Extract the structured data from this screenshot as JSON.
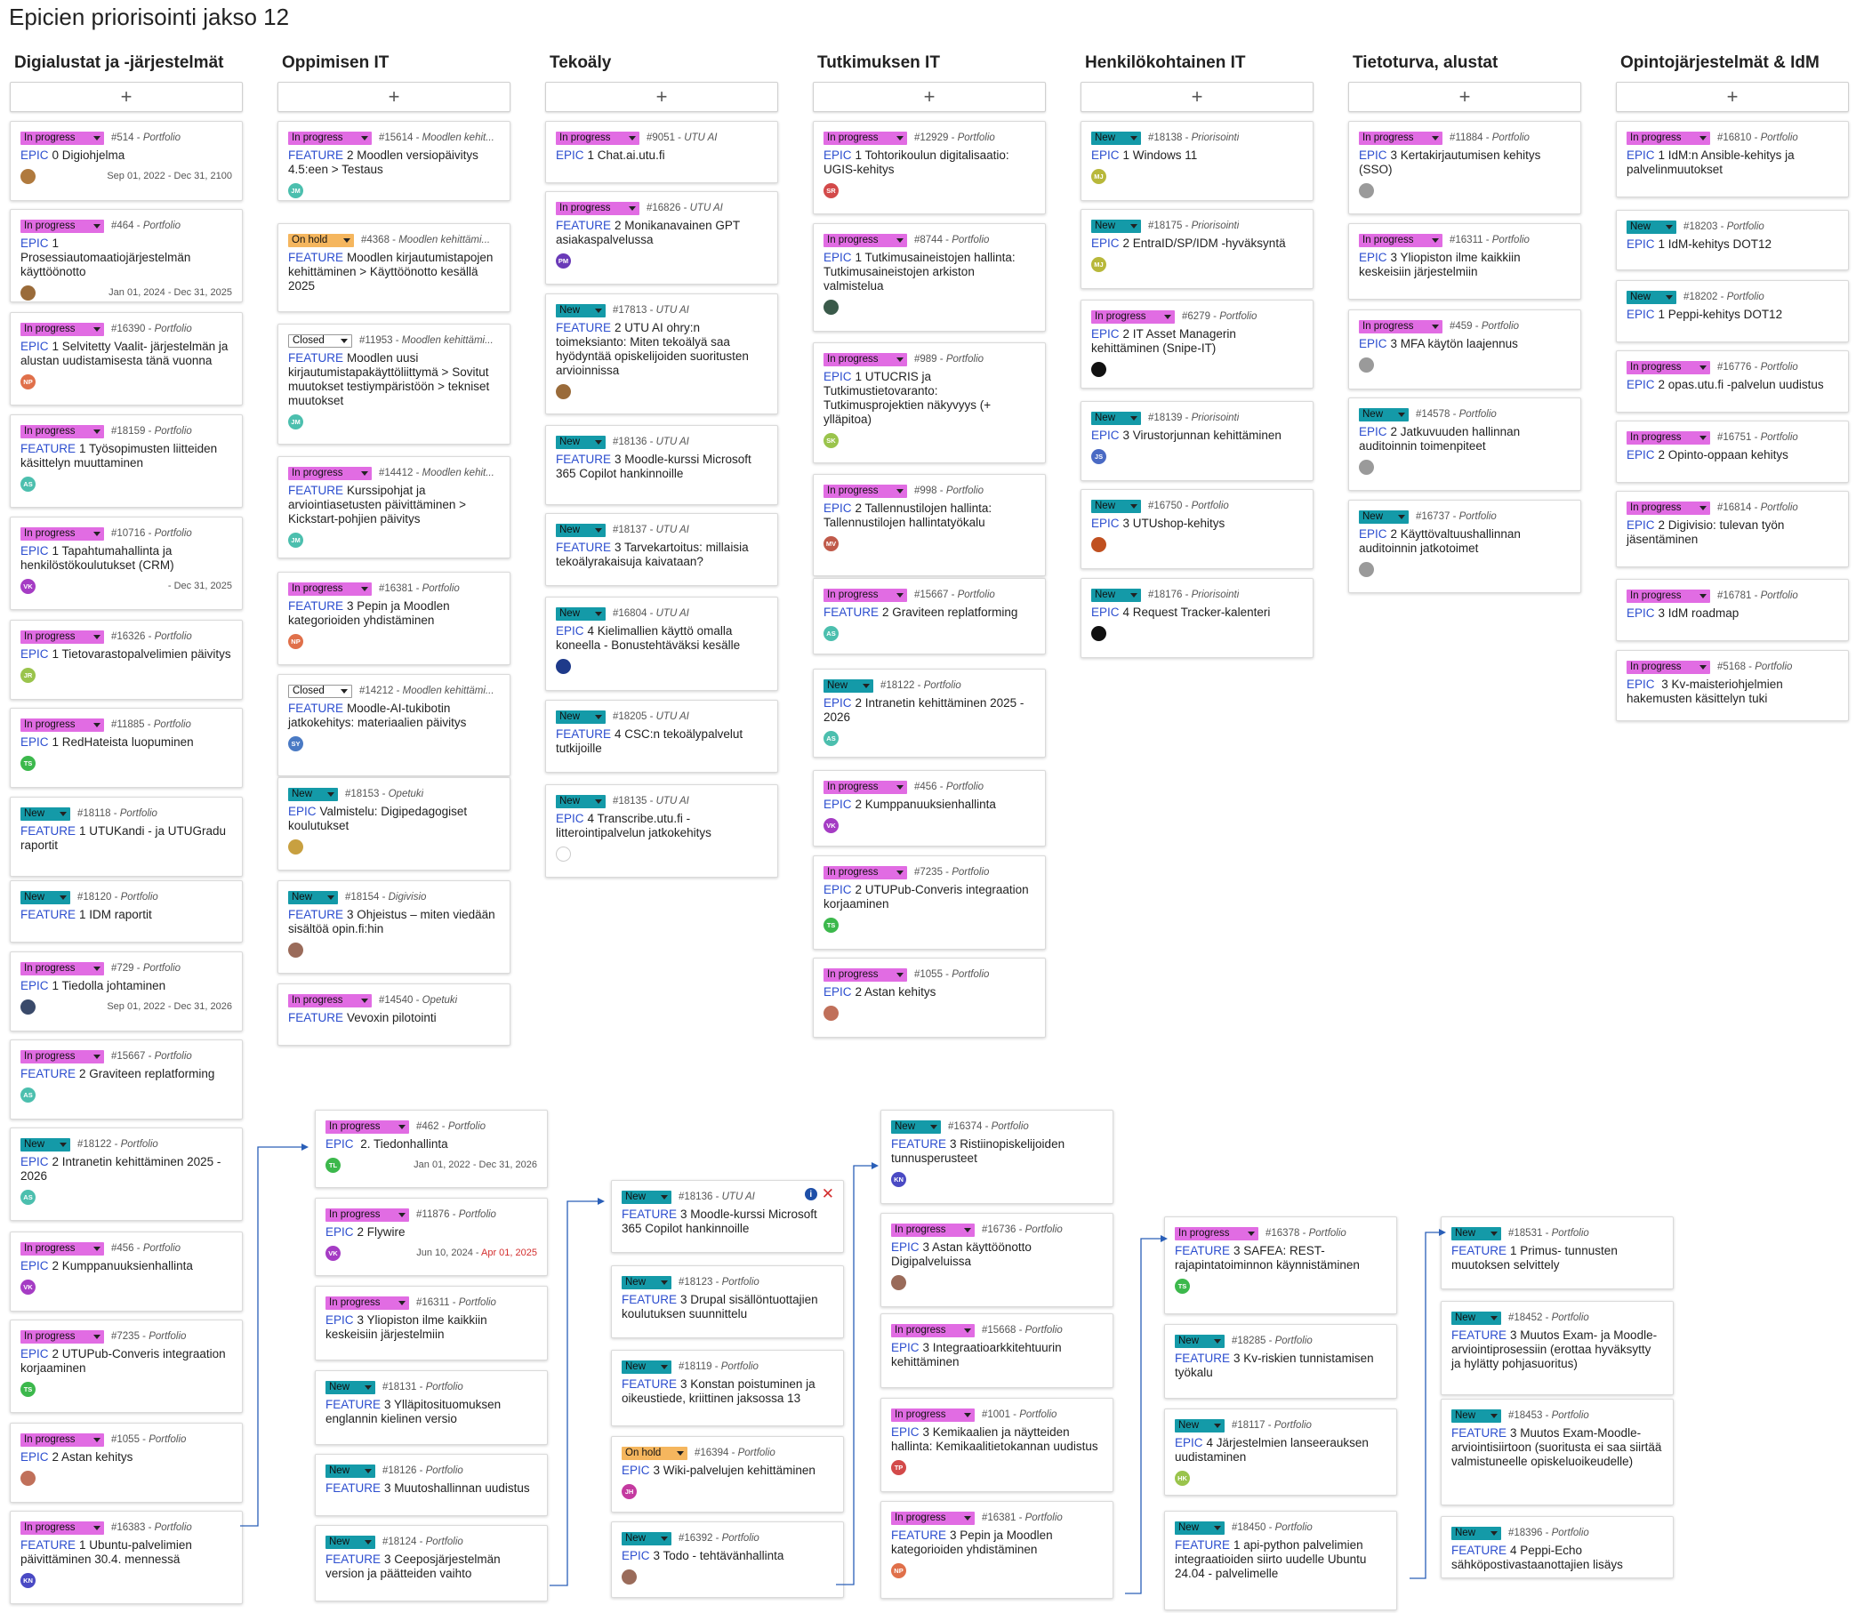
{
  "page": {
    "title": "Epicien priorisointi jakso 12"
  },
  "ui": {
    "add_label": "+"
  },
  "columns": [
    {
      "title": "Digialustat ja -järjestelmät"
    },
    {
      "title": "Oppimisen IT"
    },
    {
      "title": "Tekoäly"
    },
    {
      "title": "Tutkimuksen IT"
    },
    {
      "title": "Henkilökohtainen IT"
    },
    {
      "title": "Tietoturva, alustat"
    },
    {
      "title": "Opintojärjestelmät & IdM"
    }
  ],
  "status_colors": {
    "In progress": "#e16ce3",
    "New": "#149aa8",
    "On hold": "#f5b65e",
    "Closed": "#ffffff"
  },
  "cards": [
    {
      "status": "In progress",
      "num": "#514",
      "proj": "Portfolio",
      "kind": "EPIC",
      "text": "0 Digiohjelma",
      "avatar": "",
      "avcolor": "#b07a3e",
      "dates": "Sep 01, 2022 - Dec 31, 2100"
    },
    {
      "status": "In progress",
      "num": "#464",
      "proj": "Portfolio",
      "kind": "EPIC",
      "text": "1 Prosessiautomaatiojärjestelmän käyttöönotto",
      "avatar": "",
      "avcolor": "#9a6b3a",
      "dates": "Jan 01, 2024 - Dec 31, 2025"
    },
    {
      "status": "In progress",
      "num": "#16390",
      "proj": "Portfolio",
      "kind": "EPIC",
      "text": "1 Selvitetty Vaalit- järjestelmän ja alustan uudistamisesta tänä vuonna",
      "avatar": "NP",
      "avcolor": "#e0704a"
    },
    {
      "status": "In progress",
      "num": "#18159",
      "proj": "Portfolio",
      "kind": "FEATURE",
      "text": "1 Työsopimusten liitteiden käsittelyn muuttaminen",
      "avatar": "AS",
      "avcolor": "#4cbfae"
    },
    {
      "status": "In progress",
      "num": "#10716",
      "proj": "Portfolio",
      "kind": "EPIC",
      "text": "1 Tapahtumahallinta ja henkilöstökoulutukset (CRM)",
      "avatar": "VK",
      "avcolor": "#a53cc4",
      "dates": "- Dec 31, 2025"
    },
    {
      "status": "In progress",
      "num": "#16326",
      "proj": "Portfolio",
      "kind": "EPIC",
      "text": "1 Tietovarastopalvelimien päivitys",
      "avatar": "JR",
      "avcolor": "#9ac44c"
    },
    {
      "status": "In progress",
      "num": "#11885",
      "proj": "Portfolio",
      "kind": "EPIC",
      "text": "1 RedHateista luopuminen",
      "avatar": "TS",
      "avcolor": "#3cb84c"
    },
    {
      "status": "New",
      "num": "#18118",
      "proj": "Portfolio",
      "kind": "FEATURE",
      "text": "1 UTUKandi - ja UTUGradu raportit"
    },
    {
      "status": "New",
      "num": "#18120",
      "proj": "Portfolio",
      "kind": "FEATURE",
      "text": "1 IDM raportit"
    },
    {
      "status": "In progress",
      "num": "#729",
      "proj": "Portfolio",
      "kind": "EPIC",
      "text": "1 Tiedolla johtaminen",
      "avatar": "",
      "avcolor": "#3a4a6a",
      "dates": "Sep 01, 2022 - Dec 31, 2026"
    },
    {
      "status": "In progress",
      "num": "#15667",
      "proj": "Portfolio",
      "kind": "FEATURE",
      "text": "2 Graviteen replatforming",
      "avatar": "AS",
      "avcolor": "#4cbfae"
    },
    {
      "status": "New",
      "num": "#18122",
      "proj": "Portfolio",
      "kind": "EPIC",
      "text": "2 Intranetin kehittäminen 2025 - 2026",
      "avatar": "AS",
      "avcolor": "#4cbfae"
    },
    {
      "status": "In progress",
      "num": "#456",
      "proj": "Portfolio",
      "kind": "EPIC",
      "text": "2 Kumppanuuksienhallinta",
      "avatar": "VK",
      "avcolor": "#a53cc4"
    },
    {
      "status": "In progress",
      "num": "#7235",
      "proj": "Portfolio",
      "kind": "EPIC",
      "text": "2 UTUPub-Converis integraation korjaaminen",
      "avatar": "TS",
      "avcolor": "#3cb84c"
    },
    {
      "status": "In progress",
      "num": "#1055",
      "proj": "Portfolio",
      "kind": "EPIC",
      "text": "2 Astan kehitys",
      "avatar": "",
      "avcolor": "#c0705a"
    },
    {
      "status": "In progress",
      "num": "#16383",
      "proj": "Portfolio",
      "kind": "FEATURE",
      "text": "1 Ubuntu-palvelimien päivittäminen 30.4. mennessä",
      "avatar": "KN",
      "avcolor": "#4a4ac4"
    },
    {
      "status": "In progress",
      "num": "#15614",
      "proj": "Moodlen kehit...",
      "kind": "FEATURE",
      "text": "2 Moodlen versiopäivitys 4.5:een > Testaus",
      "avatar": "JM",
      "avcolor": "#4cbfae"
    },
    {
      "status": "On hold",
      "num": "#4368",
      "proj": "Moodlen kehittämi...",
      "kind": "FEATURE",
      "text": "Moodlen kirjautumistapojen kehittäminen > Käyttöönotto kesällä 2025"
    },
    {
      "status": "Closed",
      "num": "#11953",
      "proj": "Moodlen kehittämi...",
      "kind": "FEATURE",
      "text": "Moodlen uusi kirjautumistapakäyttöliittymä > Sovitut muutokset testiympäristöön > tekniset muutokset",
      "avatar": "JM",
      "avcolor": "#4cbfae"
    },
    {
      "status": "In progress",
      "num": "#14412",
      "proj": "Moodlen kehit...",
      "kind": "FEATURE",
      "text": "Kurssipohjat ja arviointiasetusten päivittäminen > Kickstart-pohjien päivitys",
      "avatar": "JM",
      "avcolor": "#4cbfae"
    },
    {
      "status": "In progress",
      "num": "#16381",
      "proj": "Portfolio",
      "kind": "FEATURE",
      "text": "3 Pepin ja Moodlen kategorioiden yhdistäminen",
      "avatar": "NP",
      "avcolor": "#e0704a"
    },
    {
      "status": "Closed",
      "num": "#14212",
      "proj": "Moodlen kehittämi...",
      "kind": "FEATURE",
      "text": "Moodle-AI-tukibotin jatkokehitys: materiaalien päivitys",
      "avatar": "SY",
      "avcolor": "#4a7ac4"
    },
    {
      "status": "New",
      "num": "#18153",
      "proj": "Opetuki",
      "kind": "EPIC",
      "text": "Valmistelu: Digipedagogiset koulutukset",
      "avatar": "",
      "avcolor": "#c8a040"
    },
    {
      "status": "New",
      "num": "#18154",
      "proj": "Digivisio",
      "kind": "FEATURE",
      "text": "3 Ohjeistus – miten viedään sisältöä opin.fi:hin",
      "avatar": "",
      "avcolor": "#9a6b5a"
    },
    {
      "status": "In progress",
      "num": "#14540",
      "proj": "Opetuki",
      "kind": "FEATURE",
      "text": "Vevoxin pilotointi"
    },
    {
      "status": "In progress",
      "num": "#9051",
      "proj": "UTU AI",
      "kind": "EPIC",
      "text": "1 Chat.ai.utu.fi"
    },
    {
      "status": "In progress",
      "num": "#16826",
      "proj": "UTU AI",
      "kind": "FEATURE",
      "text": "2 Monikanavainen GPT asiakaspalvelussa",
      "avatar": "PM",
      "avcolor": "#6a3ab8"
    },
    {
      "status": "New",
      "num": "#17813",
      "proj": "UTU AI",
      "kind": "FEATURE",
      "text": "2 UTU AI ohry:n toimeksianto: Miten tekoälyä saa hyödyntää opiskelijoiden suoritusten arvioinnissa",
      "avatar": "",
      "avcolor": "#9a6b3a"
    },
    {
      "status": "New",
      "num": "#18136",
      "proj": "UTU AI",
      "kind": "FEATURE",
      "text": "3 Moodle-kurssi Microsoft 365 Copilot hankinnoille"
    },
    {
      "status": "New",
      "num": "#18137",
      "proj": "UTU AI",
      "kind": "FEATURE",
      "text": "3 Tarvekartoitus: millaisia tekoälyrakaisuja kaivataan?"
    },
    {
      "status": "New",
      "num": "#16804",
      "proj": "UTU AI",
      "kind": "EPIC",
      "text": "4 Kielimallien käyttö omalla koneella - Bonustehtäväksi kesälle",
      "avatar": "",
      "avcolor": "#1e3a8a"
    },
    {
      "status": "New",
      "num": "#18205",
      "proj": "UTU AI",
      "kind": "FEATURE",
      "text": "4 CSC:n tekoälypalvelut tutkijoille"
    },
    {
      "status": "New",
      "num": "#18135",
      "proj": "UTU AI",
      "kind": "EPIC",
      "text": "4 Transcribe.utu.fi - litterointipalvelun jatkokehitys",
      "avatar": "",
      "avcolor": "#ffffff"
    },
    {
      "status": "In progress",
      "num": "#12929",
      "proj": "Portfolio",
      "kind": "EPIC",
      "text": "1 Tohtorikoulun digitalisaatio: UGIS-kehitys",
      "avatar": "SR",
      "avcolor": "#d34a4a"
    },
    {
      "status": "In progress",
      "num": "#8744",
      "proj": "Portfolio",
      "kind": "EPIC",
      "text": "1 Tutkimusaineistojen hallinta: Tutkimusaineistojen arkiston valmistelua",
      "avatar": "",
      "avcolor": "#3a5a4a"
    },
    {
      "status": "In progress",
      "num": "#989",
      "proj": "Portfolio",
      "kind": "EPIC",
      "text": "1 UTUCRIS ja Tutkimustietovaranto: Tutkimusprojektien näkyvyys (+ ylläpitoa)",
      "avatar": "SK",
      "avcolor": "#9ac44c"
    },
    {
      "status": "In progress",
      "num": "#998",
      "proj": "Portfolio",
      "kind": "EPIC",
      "text": "2 Tallennustilojen hallinta: Tallennustilojen hallintatyökalu",
      "avatar": "MV",
      "avcolor": "#c05a4a"
    },
    {
      "status": "In progress",
      "num": "#15667",
      "proj": "Portfolio",
      "kind": "FEATURE",
      "text": "2 Graviteen replatforming",
      "avatar": "AS",
      "avcolor": "#4cbfae"
    },
    {
      "status": "New",
      "num": "#18122",
      "proj": "Portfolio",
      "kind": "EPIC",
      "text": "2 Intranetin kehittäminen 2025 - 2026",
      "avatar": "AS",
      "avcolor": "#4cbfae"
    },
    {
      "status": "In progress",
      "num": "#456",
      "proj": "Portfolio",
      "kind": "EPIC",
      "text": "2 Kumppanuuksienhallinta",
      "avatar": "VK",
      "avcolor": "#a53cc4"
    },
    {
      "status": "In progress",
      "num": "#7235",
      "proj": "Portfolio",
      "kind": "EPIC",
      "text": "2 UTUPub-Converis integraation korjaaminen",
      "avatar": "TS",
      "avcolor": "#3cb84c"
    },
    {
      "status": "In progress",
      "num": "#1055",
      "proj": "Portfolio",
      "kind": "EPIC",
      "text": "2 Astan kehitys",
      "avatar": "",
      "avcolor": "#c0705a"
    },
    {
      "status": "New",
      "num": "#18138",
      "proj": "Priorisointi",
      "kind": "EPIC",
      "text": "1 Windows 11",
      "avatar": "MJ",
      "avcolor": "#b8b83a"
    },
    {
      "status": "New",
      "num": "#18175",
      "proj": "Priorisointi",
      "kind": "EPIC",
      "text": "2 EntraID/SP/IDM -hyväksyntä",
      "avatar": "MJ",
      "avcolor": "#b8b83a"
    },
    {
      "status": "In progress",
      "num": "#6279",
      "proj": "Portfolio",
      "kind": "EPIC",
      "text": "2 IT Asset Managerin kehittäminen (Snipe-IT)",
      "avatar": "",
      "avcolor": "#111111"
    },
    {
      "status": "New",
      "num": "#18139",
      "proj": "Priorisointi",
      "kind": "EPIC",
      "text": "3 Virustorjunnan kehittäminen",
      "avatar": "JS",
      "avcolor": "#4a6ac4"
    },
    {
      "status": "New",
      "num": "#16750",
      "proj": "Portfolio",
      "kind": "EPIC",
      "text": "3 UTUshop-kehitys",
      "avatar": "",
      "avcolor": "#c05020"
    },
    {
      "status": "New",
      "num": "#18176",
      "proj": "Priorisointi",
      "kind": "EPIC",
      "text": "4 Request Tracker-kalenteri",
      "avatar": "",
      "avcolor": "#111111"
    },
    {
      "status": "In progress",
      "num": "#11884",
      "proj": "Portfolio",
      "kind": "EPIC",
      "text": "3 Kertakirjautumisen kehitys (SSO)",
      "avatar": "",
      "avcolor": "#9a9a9a"
    },
    {
      "status": "In progress",
      "num": "#16311",
      "proj": "Portfolio",
      "kind": "EPIC",
      "text": "3 Yliopiston ilme kaikkiin keskeisiin järjestelmiin"
    },
    {
      "status": "In progress",
      "num": "#459",
      "proj": "Portfolio",
      "kind": "EPIC",
      "text": "3 MFA käytön laajennus",
      "avatar": "",
      "avcolor": "#9a9a9a"
    },
    {
      "status": "New",
      "num": "#14578",
      "proj": "Portfolio",
      "kind": "EPIC",
      "text": "2 Jatkuvuuden hallinnan auditoinnin toimenpiteet",
      "avatar": "",
      "avcolor": "#9a9a9a"
    },
    {
      "status": "New",
      "num": "#16737",
      "proj": "Portfolio",
      "kind": "EPIC",
      "text": "2 Käyttövaltuushallinnan auditoinnin jatkotoimet",
      "avatar": "",
      "avcolor": "#9a9a9a"
    },
    {
      "status": "In progress",
      "num": "#16810",
      "proj": "Portfolio",
      "kind": "EPIC",
      "text": "1 IdM:n Ansible-kehitys ja palvelinmuutokset"
    },
    {
      "status": "New",
      "num": "#18203",
      "proj": "Portfolio",
      "kind": "EPIC",
      "text": "1 IdM-kehitys DOT12"
    },
    {
      "status": "New",
      "num": "#18202",
      "proj": "Portfolio",
      "kind": "EPIC",
      "text": "1 Peppi-kehitys DOT12"
    },
    {
      "status": "In progress",
      "num": "#16776",
      "proj": "Portfolio",
      "kind": "EPIC",
      "text": "2 opas.utu.fi -palvelun uudistus"
    },
    {
      "status": "In progress",
      "num": "#16751",
      "proj": "Portfolio",
      "kind": "EPIC",
      "text": "2 Opinto-oppaan kehitys"
    },
    {
      "status": "In progress",
      "num": "#16814",
      "proj": "Portfolio",
      "kind": "EPIC",
      "text": "2 Digivisio: tulevan työn jäsentäminen"
    },
    {
      "status": "In progress",
      "num": "#16781",
      "proj": "Portfolio",
      "kind": "EPIC",
      "text": "3 IdM roadmap"
    },
    {
      "status": "In progress",
      "num": "#5168",
      "proj": "Portfolio",
      "kind": "EPIC",
      "text": " 3 Kv-maisteriohjelmien hakemusten käsittelyn tuki"
    },
    {
      "status": "In progress",
      "num": "#462",
      "proj": "Portfolio",
      "kind": "EPIC",
      "text": " 2. Tiedonhallinta",
      "avatar": "TL",
      "avcolor": "#3cb84c",
      "dates": "Jan 01, 2022 - Dec 31, 2026"
    },
    {
      "status": "In progress",
      "num": "#11876",
      "proj": "Portfolio",
      "kind": "EPIC",
      "text": "2 Flywire",
      "avatar": "VK",
      "avcolor": "#a53cc4",
      "dates": "Jun 10, 2024 - ",
      "dates_late": "Apr 01, 2025"
    },
    {
      "status": "In progress",
      "num": "#16311",
      "proj": "Portfolio",
      "kind": "EPIC",
      "text": "3 Yliopiston ilme kaikkiin keskeisiin järjestelmiin"
    },
    {
      "status": "New",
      "num": "#18131",
      "proj": "Portfolio",
      "kind": "FEATURE",
      "text": "3 Ylläpitosituomuksen englannin kielinen versio"
    },
    {
      "status": "New",
      "num": "#18126",
      "proj": "Portfolio",
      "kind": "FEATURE",
      "text": "3 Muutoshallinnan uudistus"
    },
    {
      "status": "New",
      "num": "#18124",
      "proj": "Portfolio",
      "kind": "FEATURE",
      "text": "3 Ceepos­järjestelmän version ja päätteiden vaihto"
    },
    {
      "status": "New",
      "num": "#18136",
      "proj": "UTU AI",
      "kind": "FEATURE",
      "text": "3 Moodle-kurssi Microsoft 365 Copilot hankinnoille",
      "icons": true
    },
    {
      "status": "New",
      "num": "#18123",
      "proj": "Portfolio",
      "kind": "FEATURE",
      "text": "3 Drupal sisällöntuottajien koulutuksen suunnittelu"
    },
    {
      "status": "New",
      "num": "#18119",
      "proj": "Portfolio",
      "kind": "FEATURE",
      "text": "3 Konstan poistuminen ja oikeustiede, kriittinen jaksossa 13"
    },
    {
      "status": "On hold",
      "num": "#16394",
      "proj": "Portfolio",
      "kind": "EPIC",
      "text": "3 Wiki-palvelujen kehittäminen",
      "avatar": "JH",
      "avcolor": "#c43aa0"
    },
    {
      "status": "New",
      "num": "#16392",
      "proj": "Portfolio",
      "kind": "EPIC",
      "text": "3 Todo - tehtävänhallinta",
      "avatar": "",
      "avcolor": "#9a6b5a"
    },
    {
      "status": "New",
      "num": "#16374",
      "proj": "Portfolio",
      "kind": "FEATURE",
      "text": "3 Ristiinopiskelijoiden tunnusperusteet",
      "avatar": "KN",
      "avcolor": "#4a4ac4"
    },
    {
      "status": "In progress",
      "num": "#16736",
      "proj": "Portfolio",
      "kind": "EPIC",
      "text": "3 Astan käyttöönotto Digipalveluissa",
      "avatar": "",
      "avcolor": "#9a6b5a"
    },
    {
      "status": "In progress",
      "num": "#15668",
      "proj": "Portfolio",
      "kind": "EPIC",
      "text": "3 Integraatioarkkitehtuurin kehittäminen"
    },
    {
      "status": "In progress",
      "num": "#1001",
      "proj": "Portfolio",
      "kind": "EPIC",
      "text": "3 Kemikaalien ja näytteiden hallinta: Kemikaalitietokannan uudistus",
      "avatar": "TP",
      "avcolor": "#d34a4a"
    },
    {
      "status": "In progress",
      "num": "#16381",
      "proj": "Portfolio",
      "kind": "FEATURE",
      "text": "3 Pepin ja Moodlen kategorioiden yhdistäminen",
      "avatar": "NP",
      "avcolor": "#e0704a"
    },
    {
      "status": "In progress",
      "num": "#16378",
      "proj": "Portfolio",
      "kind": "FEATURE",
      "text": "3 SAFEA: REST-rajapintatoiminnon käynnistäminen",
      "avatar": "TS",
      "avcolor": "#3cb84c"
    },
    {
      "status": "New",
      "num": "#18285",
      "proj": "Portfolio",
      "kind": "FEATURE",
      "text": "3 Kv-riskien tunnistamisen työkalu"
    },
    {
      "status": "New",
      "num": "#18117",
      "proj": "Portfolio",
      "kind": "EPIC",
      "text": "4 Järjestelmien lanseerauksen uudistaminen",
      "avatar": "HK",
      "avcolor": "#9ac44c"
    },
    {
      "status": "New",
      "num": "#18450",
      "proj": "Portfolio",
      "kind": "FEATURE",
      "text": "1 api-python palvelimien integraatioiden siirto uudelle Ubuntu 24.04 - palvelimelle"
    },
    {
      "status": "New",
      "num": "#18531",
      "proj": "Portfolio",
      "kind": "FEATURE",
      "text": "1 Primus- tunnusten muutoksen selvittely"
    },
    {
      "status": "New",
      "num": "#18452",
      "proj": "Portfolio",
      "kind": "FEATURE",
      "text": "3 Muutos Exam- ja Moodle-arviointiprosessiin (erottaa hyväksytty ja hylätty pohjasuoritus)"
    },
    {
      "status": "New",
      "num": "#18453",
      "proj": "Portfolio",
      "kind": "FEATURE",
      "text": "3 Muutos Exam-Moodle-arviointisiirtoon (suoritusta ei saa siirtää valmistuneelle opiskeluoikeudelle)"
    },
    {
      "status": "New",
      "num": "#18396",
      "proj": "Portfolio",
      "kind": "FEATURE",
      "text": "4 Peppi-Echo sähköpostivastaanottajien lisäys"
    }
  ]
}
